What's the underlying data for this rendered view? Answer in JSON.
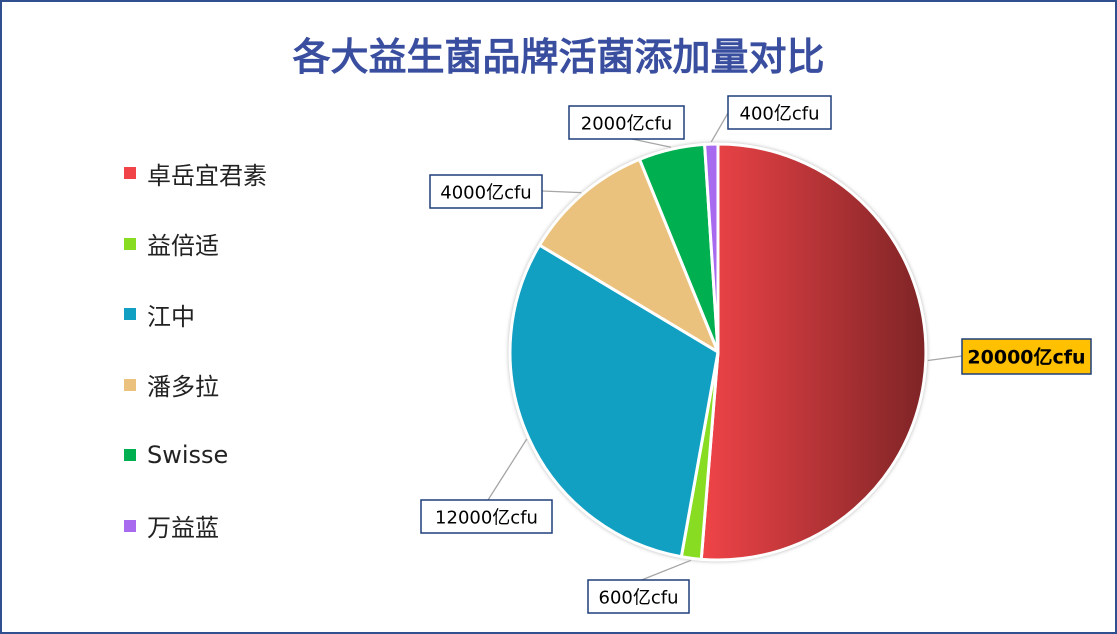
{
  "chart_data": {
    "type": "pie",
    "title": "各大益生菌品牌活菌添加量对比",
    "categories": [
      "卓岳宜君素",
      "益倍适",
      "江中",
      "潘多拉",
      "Swisse",
      "万益蓝"
    ],
    "values": [
      20000,
      600,
      12000,
      4000,
      2000,
      400
    ],
    "data_labels": [
      "20000亿cfu",
      "600亿cfu",
      "12000亿cfu",
      "4000亿cfu",
      "2000亿cfu",
      "400亿cfu"
    ],
    "unit": "亿cfu",
    "legend_position": "left",
    "highlight_index": 0
  },
  "colors": {
    "slices": [
      "#f04448",
      "#88dd22",
      "#12a0c2",
      "#eac27d",
      "#00b050",
      "#a86bf0"
    ],
    "slice0_gradient_end": "#7e2426",
    "title": "#3a4ea0",
    "label_border": "#1f3f7a",
    "highlight_fill": "#ffc000",
    "leader": "#a6a6a6"
  }
}
